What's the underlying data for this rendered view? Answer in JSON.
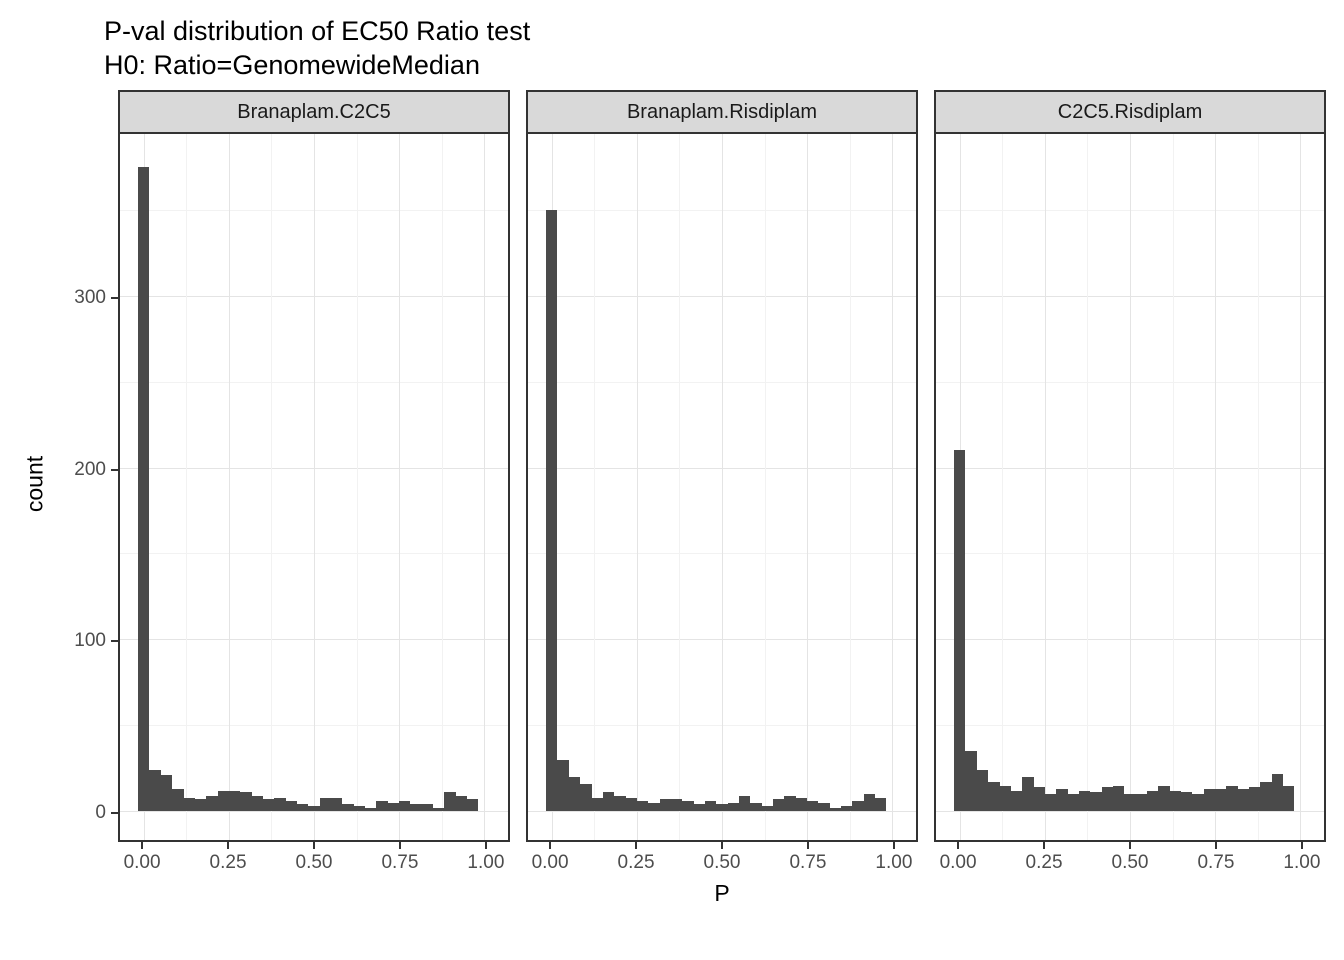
{
  "chart_data": {
    "type": "bar",
    "title": "P-val distribution of EC50 Ratio test",
    "subtitle": "H0: Ratio=GenomewideMedian",
    "xlabel": "P",
    "ylabel": "count",
    "bar_color": "#4a4a4a",
    "strip_color": "#d9d9d9",
    "xlim": [
      -0.07,
      1.07
    ],
    "ylim": [
      -19,
      394
    ],
    "bin_width": 0.03333,
    "bin_start": -0.016667,
    "y_major": [
      0,
      100,
      200,
      300
    ],
    "y_minor": [
      50,
      150,
      250,
      350
    ],
    "y_tick_labels": [
      "0",
      "100",
      "200",
      "300"
    ],
    "x_major": [
      0.0,
      0.25,
      0.5,
      0.75,
      1.0
    ],
    "x_minor": [
      0.125,
      0.375,
      0.625,
      0.875
    ],
    "x_tick_labels": [
      "0.00",
      "0.25",
      "0.50",
      "0.75",
      "1.00"
    ],
    "legend": "none",
    "grid": "on",
    "facets": [
      {
        "label": "Branaplam.C2C5",
        "values": [
          375,
          24,
          21,
          13,
          8,
          7,
          9,
          12,
          12,
          11,
          9,
          7,
          8,
          6,
          4,
          3,
          8,
          8,
          4,
          3,
          2,
          6,
          5,
          6,
          4,
          4,
          2,
          11,
          9,
          7
        ]
      },
      {
        "label": "Branaplam.Risdiplam",
        "values": [
          350,
          30,
          20,
          16,
          8,
          11,
          9,
          8,
          6,
          5,
          7,
          7,
          6,
          4,
          6,
          4,
          5,
          9,
          5,
          3,
          7,
          9,
          8,
          6,
          5,
          2,
          3,
          6,
          10,
          8
        ]
      },
      {
        "label": "C2C5.Risdiplam",
        "values": [
          210,
          35,
          24,
          17,
          15,
          12,
          20,
          14,
          10,
          13,
          10,
          12,
          11,
          14,
          15,
          10,
          10,
          12,
          15,
          12,
          11,
          10,
          13,
          13,
          15,
          13,
          14,
          17,
          22,
          15
        ]
      }
    ]
  }
}
